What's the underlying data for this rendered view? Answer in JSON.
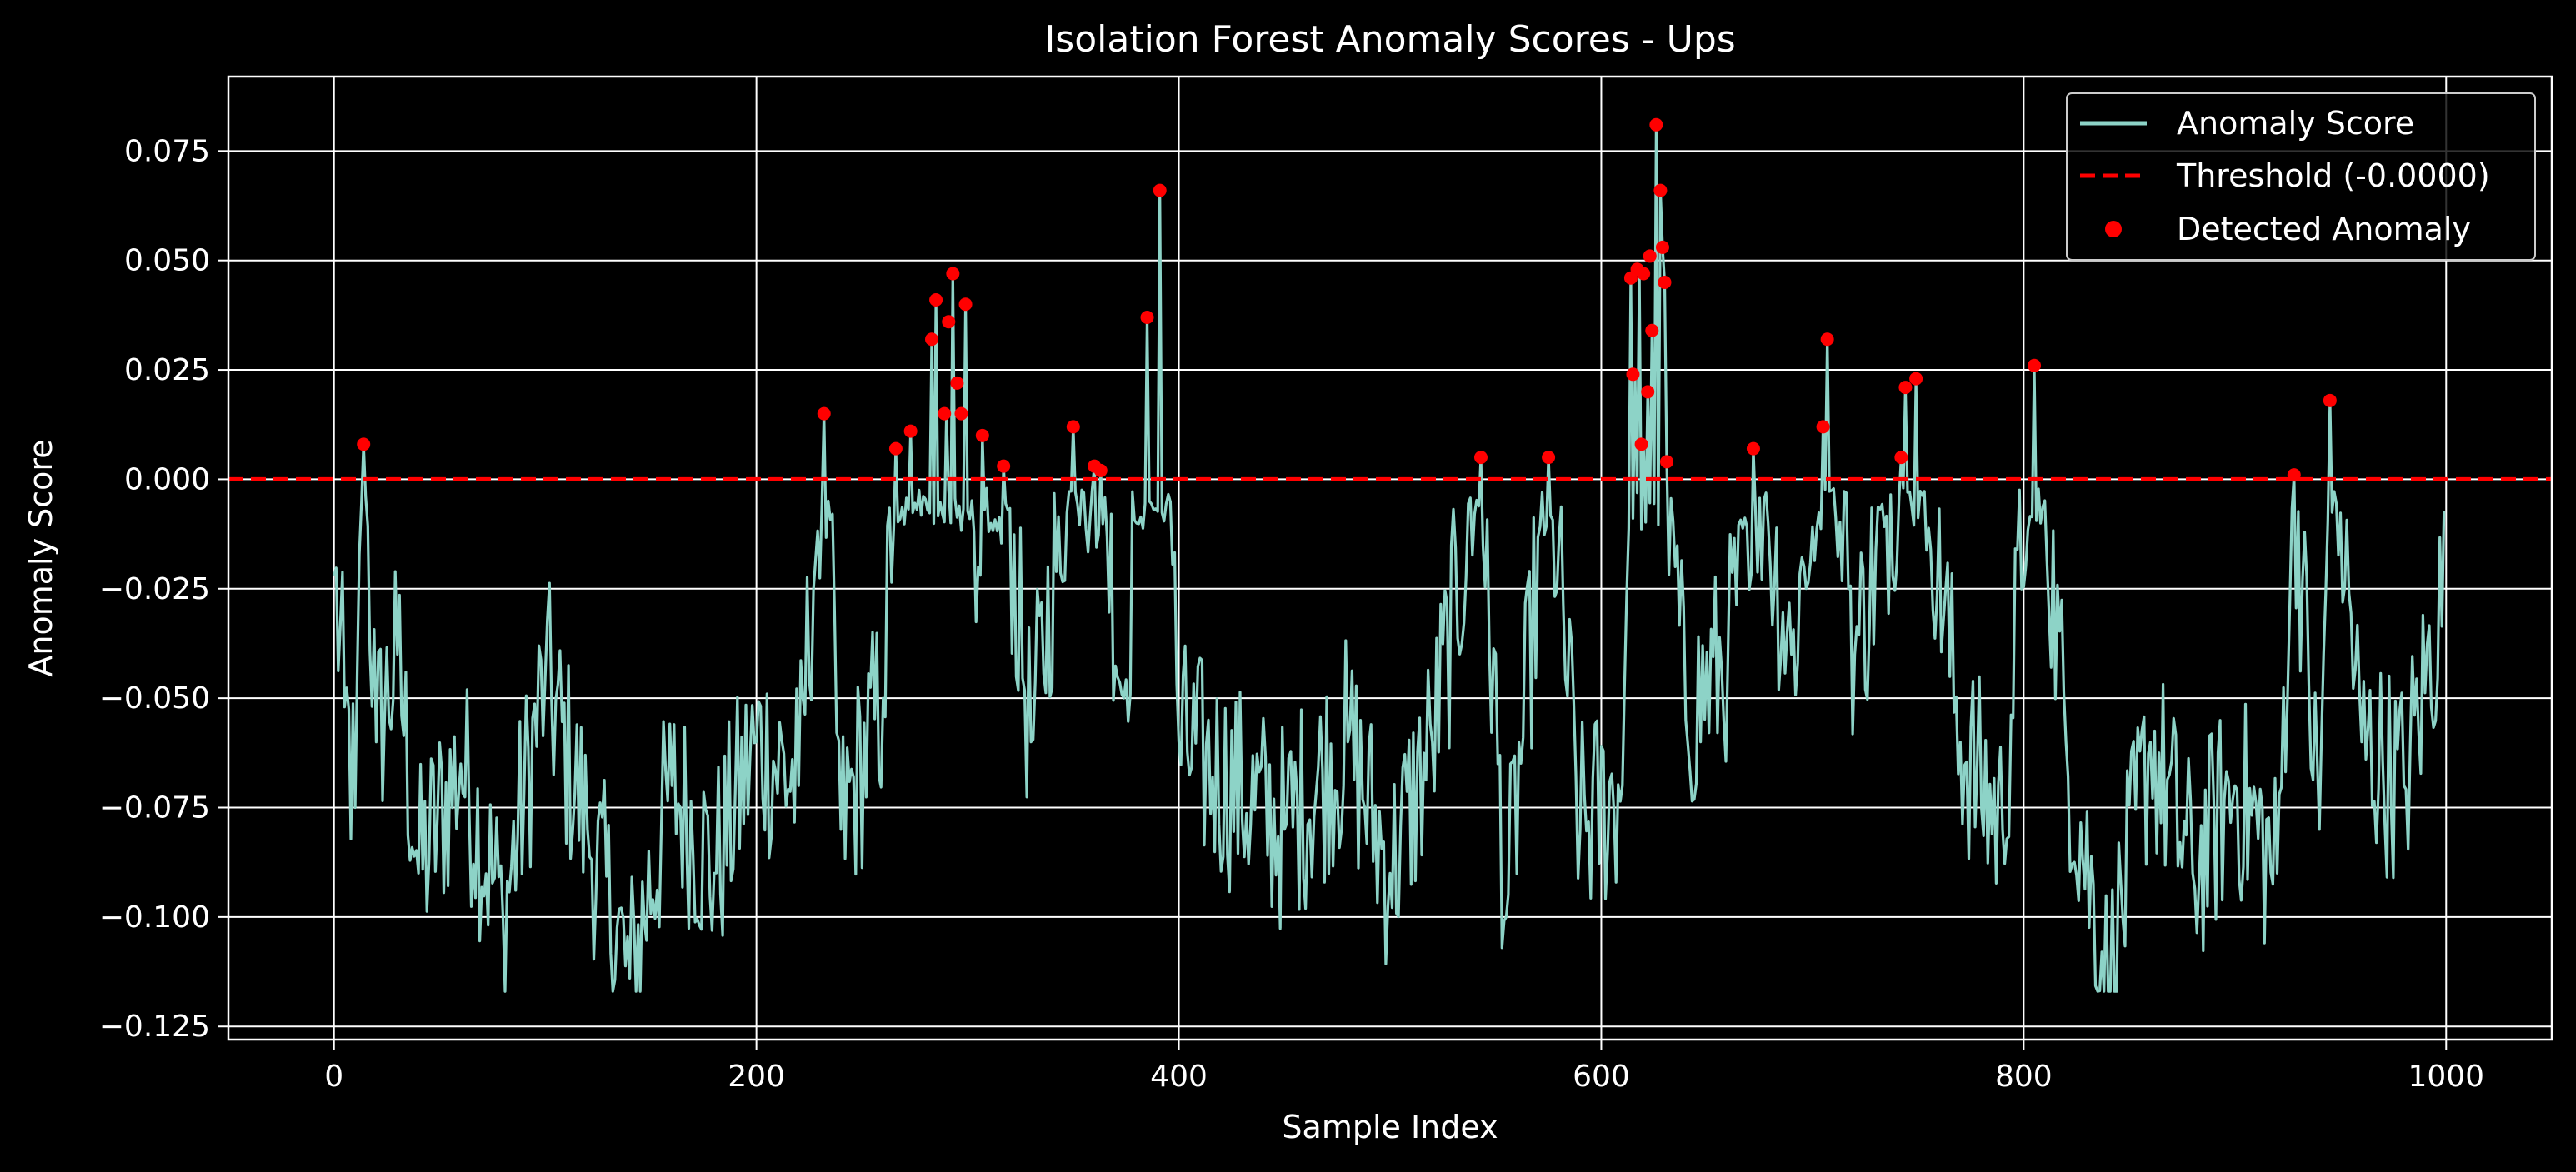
{
  "chart_data": {
    "type": "line",
    "title": "Isolation Forest Anomaly Scores - Ups",
    "xlabel": "Sample Index",
    "ylabel": "Anomaly Score",
    "xlim": [
      -50,
      1050
    ],
    "ylim": [
      -0.128,
      0.092
    ],
    "grid": true,
    "legend_position": "top-right",
    "x_ticks": [
      0,
      200,
      400,
      600,
      800,
      1000
    ],
    "x_tick_labels": [
      "0",
      "200",
      "400",
      "600",
      "800",
      "1000"
    ],
    "y_ticks": [
      -0.125,
      -0.1,
      -0.075,
      -0.05,
      -0.025,
      0.0,
      0.025,
      0.05,
      0.075
    ],
    "y_tick_labels": [
      "−0.125",
      "−0.100",
      "−0.075",
      "−0.050",
      "−0.025",
      "0.000",
      "0.025",
      "0.050",
      "0.075"
    ],
    "colors": {
      "score": "#8dd3c7",
      "threshold": "#ff0000",
      "anomaly": "#ff0000",
      "background": "#000000",
      "grid": "#ffffff"
    },
    "series": [
      {
        "name": "Anomaly Score",
        "kind": "line",
        "n_points": 1000,
        "x_start": 0,
        "key_points": [
          [
            0,
            -0.022
          ],
          [
            5,
            -0.052
          ],
          [
            10,
            -0.075
          ],
          [
            14,
            0.008
          ],
          [
            20,
            -0.06
          ],
          [
            30,
            -0.04
          ],
          [
            40,
            -0.09
          ],
          [
            60,
            -0.065
          ],
          [
            80,
            -0.1
          ],
          [
            100,
            -0.045
          ],
          [
            120,
            -0.08
          ],
          [
            140,
            -0.114
          ],
          [
            160,
            -0.07
          ],
          [
            180,
            -0.09
          ],
          [
            200,
            -0.06
          ],
          [
            220,
            -0.07
          ],
          [
            232,
            0.015
          ],
          [
            240,
            -0.08
          ],
          [
            260,
            -0.05
          ],
          [
            266,
            0.007
          ],
          [
            273,
            0.011
          ],
          [
            283,
            0.032
          ],
          [
            285,
            0.041
          ],
          [
            290,
            0.015
          ],
          [
            293,
            0.047
          ],
          [
            299,
            0.04
          ],
          [
            305,
            -0.02
          ],
          [
            307,
            0.01
          ],
          [
            317,
            0.003
          ],
          [
            330,
            -0.06
          ],
          [
            350,
            0.012
          ],
          [
            360,
            0.003
          ],
          [
            363,
            0.002
          ],
          [
            374,
            -0.05
          ],
          [
            385,
            0.037
          ],
          [
            391,
            0.066
          ],
          [
            400,
            -0.06
          ],
          [
            450,
            -0.08
          ],
          [
            480,
            -0.06
          ],
          [
            500,
            -0.09
          ],
          [
            520,
            -0.06
          ],
          [
            543,
            0.005
          ],
          [
            555,
            -0.1
          ],
          [
            575,
            0.005
          ],
          [
            590,
            -0.08
          ],
          [
            610,
            -0.07
          ],
          [
            614,
            0.046
          ],
          [
            616,
            0.024
          ],
          [
            618,
            0.048
          ],
          [
            620,
            0.008
          ],
          [
            622,
            0.02
          ],
          [
            624,
            0.034
          ],
          [
            626,
            0.081
          ],
          [
            628,
            0.066
          ],
          [
            629,
            0.053
          ],
          [
            630,
            0.045
          ],
          [
            631,
            0.004
          ],
          [
            640,
            -0.055
          ],
          [
            660,
            -0.04
          ],
          [
            672,
            0.007
          ],
          [
            690,
            -0.04
          ],
          [
            705,
            0.012
          ],
          [
            707,
            0.032
          ],
          [
            720,
            -0.04
          ],
          [
            742,
            0.005
          ],
          [
            744,
            0.021
          ],
          [
            749,
            0.023
          ],
          [
            770,
            -0.06
          ],
          [
            790,
            -0.08
          ],
          [
            805,
            0.026
          ],
          [
            820,
            -0.06
          ],
          [
            840,
            -0.117
          ],
          [
            860,
            -0.06
          ],
          [
            880,
            -0.09
          ],
          [
            900,
            -0.07
          ],
          [
            920,
            -0.09
          ],
          [
            928,
            0.001
          ],
          [
            940,
            -0.08
          ],
          [
            945,
            0.018
          ],
          [
            960,
            -0.06
          ],
          [
            980,
            -0.07
          ],
          [
            1000,
            -0.023
          ]
        ]
      },
      {
        "name": "Threshold (-0.0000)",
        "kind": "hline",
        "y": 0.0
      },
      {
        "name": "Detected Anomaly",
        "kind": "scatter",
        "points": [
          [
            14,
            0.008
          ],
          [
            232,
            0.015
          ],
          [
            266,
            0.007
          ],
          [
            273,
            0.011
          ],
          [
            283,
            0.032
          ],
          [
            285,
            0.041
          ],
          [
            289,
            0.015
          ],
          [
            291,
            0.036
          ],
          [
            293,
            0.047
          ],
          [
            295,
            0.022
          ],
          [
            297,
            0.015
          ],
          [
            299,
            0.04
          ],
          [
            307,
            0.01
          ],
          [
            317,
            0.003
          ],
          [
            350,
            0.012
          ],
          [
            360,
            0.003
          ],
          [
            363,
            0.002
          ],
          [
            385,
            0.037
          ],
          [
            391,
            0.066
          ],
          [
            543,
            0.005
          ],
          [
            575,
            0.005
          ],
          [
            614,
            0.046
          ],
          [
            615,
            0.024
          ],
          [
            617,
            0.048
          ],
          [
            619,
            0.008
          ],
          [
            620,
            0.047
          ],
          [
            622,
            0.02
          ],
          [
            623,
            0.051
          ],
          [
            624,
            0.034
          ],
          [
            626,
            0.081
          ],
          [
            628,
            0.066
          ],
          [
            629,
            0.053
          ],
          [
            630,
            0.045
          ],
          [
            631,
            0.004
          ],
          [
            672,
            0.007
          ],
          [
            705,
            0.012
          ],
          [
            707,
            0.032
          ],
          [
            742,
            0.005
          ],
          [
            744,
            0.021
          ],
          [
            749,
            0.023
          ],
          [
            805,
            0.026
          ],
          [
            928,
            0.001
          ],
          [
            945,
            0.018
          ]
        ]
      }
    ]
  }
}
